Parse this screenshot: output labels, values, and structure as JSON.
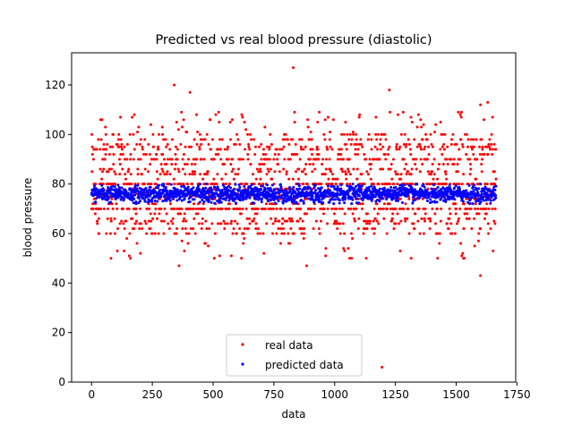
{
  "chart_data": {
    "type": "scatter",
    "title": "Predicted vs real blood pressure (diastolic)",
    "xlabel": "data",
    "ylabel": "blood pressure",
    "xlim": [
      -82,
      1745
    ],
    "ylim": [
      0,
      133
    ],
    "xticks": [
      0,
      250,
      500,
      750,
      1000,
      1250,
      1500,
      1750
    ],
    "yticks": [
      0,
      20,
      40,
      60,
      80,
      100,
      120
    ],
    "x_tick_labels": [
      "0",
      "250",
      "500",
      "750",
      "1000",
      "1250",
      "1500",
      "1750"
    ],
    "y_tick_labels": [
      "0",
      "20",
      "40",
      "60",
      "80",
      "100",
      "120"
    ],
    "grid": false,
    "legend_position": "lower center",
    "n_points_per_series": 1665,
    "series": [
      {
        "name": "real data",
        "color": "#ff0000",
        "marker": "dot",
        "distribution": "discrete values mostly 60-90, concentrated at 70 and 80, spread 50-110",
        "outliers": [
          {
            "x": 340,
            "y": 120
          },
          {
            "x": 405,
            "y": 117
          },
          {
            "x": 830,
            "y": 127
          },
          {
            "x": 1225,
            "y": 118
          },
          {
            "x": 1600,
            "y": 112
          },
          {
            "x": 1630,
            "y": 113
          },
          {
            "x": 1195,
            "y": 6
          },
          {
            "x": 1600,
            "y": 43
          },
          {
            "x": 360,
            "y": 47
          },
          {
            "x": 885,
            "y": 47
          },
          {
            "x": 80,
            "y": 50
          },
          {
            "x": 160,
            "y": 50
          },
          {
            "x": 505,
            "y": 50
          },
          {
            "x": 1070,
            "y": 50
          },
          {
            "x": 1315,
            "y": 50
          },
          {
            "x": 1530,
            "y": 50
          }
        ]
      },
      {
        "name": "predicted data",
        "color": "#0000ff",
        "marker": "dot",
        "distribution": "dense band between about 72 and 80, centered near 76",
        "band": [
          72,
          80
        ],
        "center": 76
      }
    ]
  }
}
